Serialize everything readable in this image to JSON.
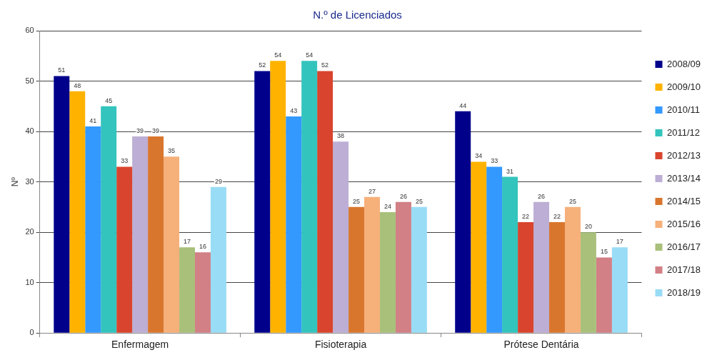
{
  "chart_data": {
    "type": "bar",
    "title": "N.º de Licenciados",
    "ylabel": "Nº",
    "categories": [
      "Enfermagem",
      "Fisioterapia",
      "Prótese Dentária"
    ],
    "series": [
      {
        "name": "2008/09",
        "color": "#00008b",
        "values": [
          51,
          52,
          44
        ]
      },
      {
        "name": "2009/10",
        "color": "#ffb300",
        "values": [
          48,
          54,
          34
        ]
      },
      {
        "name": "2010/11",
        "color": "#3399ff",
        "values": [
          41,
          43,
          33
        ]
      },
      {
        "name": "2011/12",
        "color": "#33c4bd",
        "values": [
          45,
          54,
          31
        ]
      },
      {
        "name": "2012/13",
        "color": "#d9442e",
        "values": [
          33,
          52,
          22
        ]
      },
      {
        "name": "2013/14",
        "color": "#bcaed4",
        "values": [
          39,
          38,
          26
        ]
      },
      {
        "name": "2014/15",
        "color": "#d9762e",
        "values": [
          39,
          25,
          22
        ]
      },
      {
        "name": "2015/16",
        "color": "#f6b07a",
        "values": [
          35,
          27,
          25
        ]
      },
      {
        "name": "2016/17",
        "color": "#a8c07a",
        "values": [
          17,
          24,
          20
        ]
      },
      {
        "name": "2017/18",
        "color": "#d27f86",
        "values": [
          16,
          26,
          15
        ]
      },
      {
        "name": "2018/19",
        "color": "#99dcf5",
        "values": [
          29,
          25,
          17
        ]
      }
    ],
    "ylim": [
      0,
      60
    ],
    "yticks": [
      0,
      10,
      20,
      30,
      40,
      50,
      60
    ],
    "grid": "y",
    "legend": "right",
    "data_labels": true
  }
}
